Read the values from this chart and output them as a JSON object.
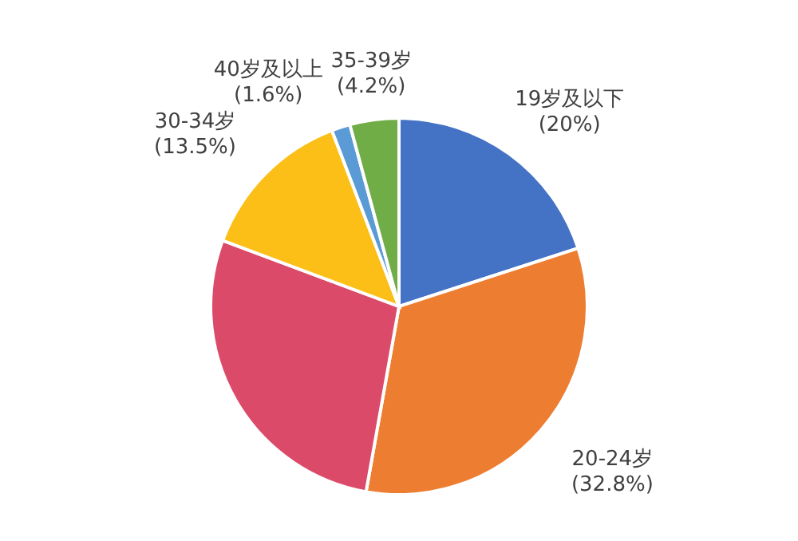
{
  "chart_data": {
    "type": "pie",
    "categories": [
      "19岁及以下",
      "20-24岁",
      null,
      "30-34岁",
      "40岁及以上",
      "35-39岁"
    ],
    "values": [
      20,
      32.8,
      27.9,
      13.5,
      1.6,
      4.2
    ],
    "value_labels": [
      "(20%)",
      "(32.8%)",
      null,
      "(13.5%)",
      "(1.6%)",
      "(4.2%)"
    ],
    "colors": [
      "#4472c4",
      "#ed7d31",
      "#dc4a6a",
      "#fbbf17",
      "#5b9bd5",
      "#70ad47"
    ]
  }
}
